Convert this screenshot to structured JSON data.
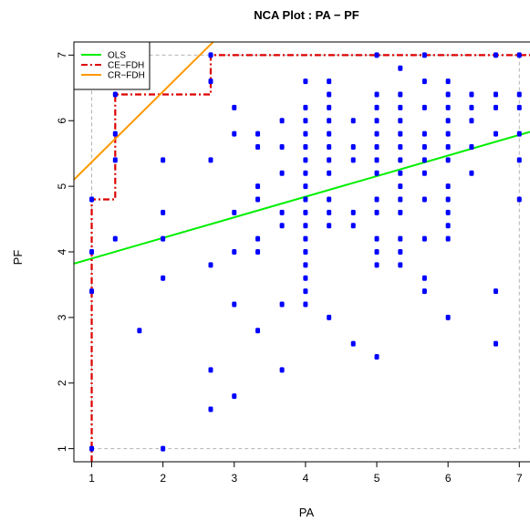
{
  "chart_data": {
    "type": "scatter",
    "title": "NCA Plot : PA − PF",
    "xlabel": "PA",
    "ylabel": "PF",
    "xlim": [
      0.75,
      7.15
    ],
    "ylim": [
      0.8,
      7.2
    ],
    "x_ticks": [
      1,
      2,
      3,
      4,
      5,
      6,
      7
    ],
    "y_ticks": [
      1,
      2,
      3,
      4,
      5,
      6,
      7
    ],
    "scope": {
      "x": [
        1,
        7
      ],
      "y": [
        1,
        7
      ]
    },
    "grid": false,
    "legend_position": "top-left",
    "points_color": "#0000ff",
    "points": [
      [
        1,
        1
      ],
      [
        1,
        3.4
      ],
      [
        1,
        4
      ],
      [
        1,
        4.8
      ],
      [
        1.33,
        4.2
      ],
      [
        1.33,
        5.4
      ],
      [
        1.33,
        5.8
      ],
      [
        1.33,
        6.4
      ],
      [
        1.67,
        2.8
      ],
      [
        2,
        1
      ],
      [
        2,
        3.6
      ],
      [
        2,
        4.2
      ],
      [
        2,
        4.6
      ],
      [
        2,
        5.4
      ],
      [
        2.67,
        1.6
      ],
      [
        2.67,
        2.2
      ],
      [
        2.67,
        3.8
      ],
      [
        2.67,
        5.4
      ],
      [
        2.67,
        6.6
      ],
      [
        2.67,
        7
      ],
      [
        3,
        1.8
      ],
      [
        3,
        3.2
      ],
      [
        3,
        4
      ],
      [
        3,
        4.6
      ],
      [
        3,
        5.8
      ],
      [
        3,
        6.2
      ],
      [
        3.33,
        2.8
      ],
      [
        3.33,
        4
      ],
      [
        3.33,
        4.2
      ],
      [
        3.33,
        4.8
      ],
      [
        3.33,
        5
      ],
      [
        3.33,
        5.6
      ],
      [
        3.33,
        5.8
      ],
      [
        3.67,
        2.2
      ],
      [
        3.67,
        3.2
      ],
      [
        3.67,
        4.4
      ],
      [
        3.67,
        4.6
      ],
      [
        3.67,
        5.2
      ],
      [
        3.67,
        5.6
      ],
      [
        3.67,
        6
      ],
      [
        4,
        3.2
      ],
      [
        4,
        3.4
      ],
      [
        4,
        3.6
      ],
      [
        4,
        3.8
      ],
      [
        4,
        4
      ],
      [
        4,
        4.2
      ],
      [
        4,
        4.4
      ],
      [
        4,
        4.6
      ],
      [
        4,
        4.8
      ],
      [
        4,
        5
      ],
      [
        4,
        5.2
      ],
      [
        4,
        5.4
      ],
      [
        4,
        5.6
      ],
      [
        4,
        5.8
      ],
      [
        4,
        6
      ],
      [
        4,
        6.2
      ],
      [
        4,
        6.6
      ],
      [
        4.33,
        3
      ],
      [
        4.33,
        4.4
      ],
      [
        4.33,
        4.6
      ],
      [
        4.33,
        4.8
      ],
      [
        4.33,
        5.2
      ],
      [
        4.33,
        5.4
      ],
      [
        4.33,
        5.6
      ],
      [
        4.33,
        5.8
      ],
      [
        4.33,
        6
      ],
      [
        4.33,
        6.2
      ],
      [
        4.33,
        6.4
      ],
      [
        4.33,
        6.6
      ],
      [
        4.67,
        2.6
      ],
      [
        4.67,
        4.4
      ],
      [
        4.67,
        4.6
      ],
      [
        4.67,
        5.4
      ],
      [
        4.67,
        5.6
      ],
      [
        4.67,
        6
      ],
      [
        5,
        2.4
      ],
      [
        5,
        3.8
      ],
      [
        5,
        4
      ],
      [
        5,
        4.2
      ],
      [
        5,
        4.6
      ],
      [
        5,
        4.8
      ],
      [
        5,
        5.2
      ],
      [
        5,
        5.4
      ],
      [
        5,
        5.6
      ],
      [
        5,
        5.8
      ],
      [
        5,
        6
      ],
      [
        5,
        6.2
      ],
      [
        5,
        6.4
      ],
      [
        5,
        7
      ],
      [
        5.33,
        3.8
      ],
      [
        5.33,
        4
      ],
      [
        5.33,
        4.2
      ],
      [
        5.33,
        4.6
      ],
      [
        5.33,
        4.8
      ],
      [
        5.33,
        5
      ],
      [
        5.33,
        5.2
      ],
      [
        5.33,
        5.4
      ],
      [
        5.33,
        5.6
      ],
      [
        5.33,
        5.8
      ],
      [
        5.33,
        6
      ],
      [
        5.33,
        6.2
      ],
      [
        5.33,
        6.4
      ],
      [
        5.33,
        6.8
      ],
      [
        5.67,
        3.4
      ],
      [
        5.67,
        3.6
      ],
      [
        5.67,
        4.2
      ],
      [
        5.67,
        4.8
      ],
      [
        5.67,
        5.2
      ],
      [
        5.67,
        5.4
      ],
      [
        5.67,
        5.6
      ],
      [
        5.67,
        5.8
      ],
      [
        5.67,
        6.2
      ],
      [
        5.67,
        6.6
      ],
      [
        5.67,
        7
      ],
      [
        6,
        3
      ],
      [
        6,
        4.2
      ],
      [
        6,
        4.4
      ],
      [
        6,
        4.6
      ],
      [
        6,
        4.8
      ],
      [
        6,
        5
      ],
      [
        6,
        5.4
      ],
      [
        6,
        5.6
      ],
      [
        6,
        5.8
      ],
      [
        6,
        6
      ],
      [
        6,
        6.2
      ],
      [
        6,
        6.4
      ],
      [
        6,
        6.6
      ],
      [
        6.33,
        5.2
      ],
      [
        6.33,
        5.6
      ],
      [
        6.33,
        6
      ],
      [
        6.33,
        6.2
      ],
      [
        6.33,
        6.4
      ],
      [
        6.67,
        2.6
      ],
      [
        6.67,
        3.4
      ],
      [
        6.67,
        5.8
      ],
      [
        6.67,
        6.2
      ],
      [
        6.67,
        6.4
      ],
      [
        6.67,
        7
      ],
      [
        7,
        4.8
      ],
      [
        7,
        5.4
      ],
      [
        7,
        5.8
      ],
      [
        7,
        6.2
      ],
      [
        7,
        6.4
      ],
      [
        7,
        7
      ]
    ],
    "series": [
      {
        "name": "OLS",
        "kind": "line",
        "color": "#00ee00",
        "dash": "solid",
        "x": [
          0.75,
          7.15
        ],
        "y": [
          3.82,
          5.83
        ]
      },
      {
        "name": "CE−FDH",
        "kind": "step",
        "color": "#dd0000",
        "dash": "dashdot",
        "x": [
          1,
          1,
          1.33,
          1.33,
          2.67,
          2.67,
          7.15
        ],
        "y": [
          0.8,
          4.8,
          4.8,
          6.4,
          6.4,
          7,
          7
        ]
      },
      {
        "name": "CR−FDH",
        "kind": "line",
        "color": "#ff9900",
        "dash": "solid",
        "x": [
          0.75,
          2.75
        ],
        "y": [
          5.1,
          7.25
        ]
      }
    ]
  }
}
